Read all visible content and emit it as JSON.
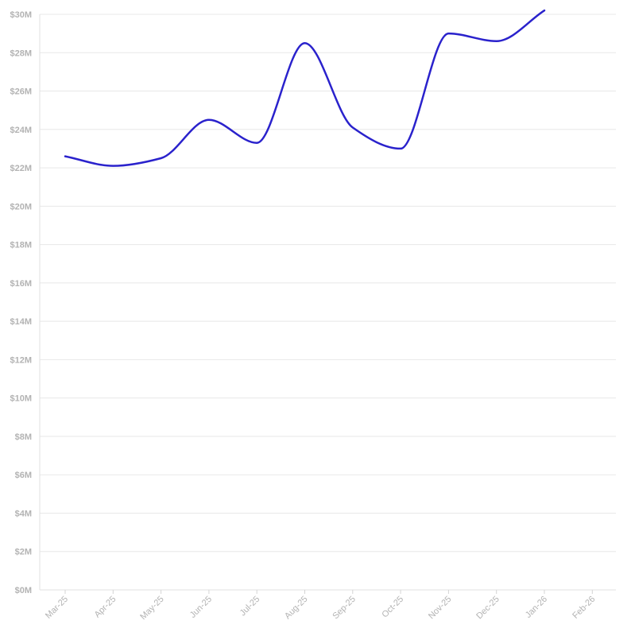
{
  "chart_data": {
    "type": "line",
    "title": "",
    "xlabel": "",
    "ylabel": "",
    "x": [
      "Mar-25",
      "Apr-25",
      "May-25",
      "Jun-25",
      "Jul-25",
      "Aug-25",
      "Sep-25",
      "Oct-25",
      "Nov-25",
      "Dec-25",
      "Jan-26",
      "Feb-26"
    ],
    "y_ticks": [
      "$0M",
      "$2M",
      "$4M",
      "$6M",
      "$8M",
      "$10M",
      "$12M",
      "$14M",
      "$16M",
      "$18M",
      "$20M",
      "$22M",
      "$24M",
      "$26M",
      "$28M",
      "$30M"
    ],
    "ylim": [
      0,
      30
    ],
    "y_unit": "$M",
    "grid": true,
    "legend": "none",
    "series": [
      {
        "color": "#2a22cc",
        "values": [
          22.6,
          22.1,
          22.5,
          24.5,
          23.3,
          28.5,
          24.1,
          23.0,
          29.0,
          28.6,
          30.2,
          null
        ]
      }
    ]
  }
}
